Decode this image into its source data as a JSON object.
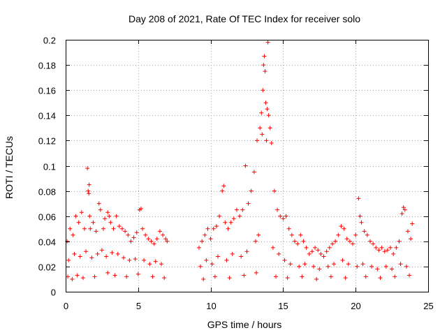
{
  "chart_data": {
    "type": "scatter",
    "title": "Day 208 of 2021, Rate Of TEC Index for receiver solo",
    "xlabel": "GPS time / hours",
    "ylabel": "ROTI / TECUs",
    "xlim": [
      0,
      25
    ],
    "ylim": [
      0,
      0.2
    ],
    "xticks": [
      0,
      5,
      10,
      15,
      20,
      25
    ],
    "xtick_labels": [
      "0",
      "5",
      "10",
      "15",
      "20",
      "25"
    ],
    "yticks": [
      0,
      0.02,
      0.04,
      0.06,
      0.08,
      0.1,
      0.12,
      0.14,
      0.16,
      0.18,
      0.2
    ],
    "ytick_labels": [
      "0",
      "0.02",
      "0.04",
      "0.06",
      "0.08",
      "0.1",
      "0.12",
      "0.14",
      "0.16",
      "0.18",
      "0.2"
    ],
    "grid": true,
    "marker": "+",
    "color": "#ff0000",
    "series": [
      {
        "name": "ROTI",
        "x": [
          0.1,
          0.3,
          0.5,
          0.7,
          0.9,
          1.1,
          1.3,
          1.5,
          1.55,
          1.6,
          1.62,
          1.65,
          1.7,
          1.9,
          2.1,
          2.3,
          2.4,
          2.6,
          2.7,
          2.9,
          3.0,
          3.1,
          3.3,
          3.5,
          3.7,
          3.9,
          4.1,
          4.3,
          4.5,
          4.7,
          4.9,
          5.1,
          5.2,
          5.3,
          5.5,
          5.7,
          5.9,
          6.1,
          6.3,
          6.5,
          6.7,
          6.9,
          7.0,
          0.2,
          0.6,
          1.0,
          1.4,
          1.8,
          2.2,
          2.5,
          2.8,
          3.2,
          3.6,
          4.0,
          4.4,
          4.8,
          5.4,
          5.8,
          6.2,
          6.6,
          0.15,
          0.45,
          0.8,
          1.2,
          2.0,
          2.9,
          3.4,
          4.2,
          5.0,
          6.0,
          6.8,
          9.2,
          9.4,
          9.6,
          9.8,
          10.0,
          10.2,
          10.4,
          10.6,
          10.8,
          10.9,
          11.0,
          11.2,
          11.4,
          11.6,
          11.8,
          12.0,
          12.2,
          12.4,
          12.6,
          12.8,
          13.0,
          13.2,
          13.4,
          13.5,
          13.55,
          13.6,
          13.65,
          13.7,
          13.75,
          13.8,
          13.85,
          13.9,
          13.95,
          14.0,
          14.1,
          14.2,
          14.4,
          14.6,
          14.8,
          15.0,
          15.2,
          15.4,
          15.6,
          15.8,
          16.0,
          16.2,
          16.4,
          16.6,
          16.8,
          17.0,
          17.2,
          17.4,
          17.6,
          17.8,
          18.0,
          18.2,
          18.4,
          18.6,
          18.8,
          19.0,
          19.2,
          19.4,
          19.6,
          19.8,
          20.0,
          20.2,
          20.3,
          20.4,
          20.6,
          20.8,
          21.0,
          21.2,
          21.4,
          21.6,
          21.8,
          22.0,
          22.2,
          22.4,
          22.6,
          22.8,
          23.0,
          23.2,
          23.3,
          23.4,
          23.6,
          23.8,
          23.9,
          9.3,
          9.7,
          10.1,
          10.5,
          11.1,
          11.5,
          12.1,
          12.5,
          13.1,
          13.3,
          14.3,
          14.7,
          15.1,
          15.5,
          16.1,
          16.5,
          17.1,
          17.5,
          18.1,
          18.5,
          19.1,
          19.5,
          20.1,
          20.5,
          21.1,
          21.5,
          22.1,
          22.5,
          23.1,
          23.5,
          9.5,
          10.3,
          11.3,
          12.3,
          13.15,
          14.5,
          15.3,
          16.3,
          17.3,
          18.3,
          19.3,
          20.7,
          21.7,
          22.7,
          23.7
        ],
        "y": [
          0.04,
          0.05,
          0.045,
          0.06,
          0.055,
          0.063,
          0.05,
          0.098,
          0.08,
          0.078,
          0.085,
          0.06,
          0.05,
          0.055,
          0.048,
          0.07,
          0.065,
          0.05,
          0.058,
          0.063,
          0.06,
          0.055,
          0.05,
          0.06,
          0.052,
          0.05,
          0.048,
          0.045,
          0.04,
          0.043,
          0.047,
          0.065,
          0.066,
          0.05,
          0.045,
          0.042,
          0.04,
          0.038,
          0.042,
          0.048,
          0.045,
          0.042,
          0.04,
          0.025,
          0.03,
          0.028,
          0.032,
          0.027,
          0.03,
          0.033,
          0.028,
          0.031,
          0.03,
          0.027,
          0.025,
          0.026,
          0.025,
          0.022,
          0.024,
          0.022,
          0.012,
          0.01,
          0.013,
          0.011,
          0.012,
          0.015,
          0.013,
          0.012,
          0.014,
          0.012,
          0.011,
          0.035,
          0.04,
          0.045,
          0.05,
          0.042,
          0.05,
          0.052,
          0.06,
          0.08,
          0.084,
          0.055,
          0.05,
          0.055,
          0.058,
          0.065,
          0.06,
          0.065,
          0.1,
          0.07,
          0.08,
          0.095,
          0.12,
          0.13,
          0.142,
          0.125,
          0.16,
          0.18,
          0.187,
          0.175,
          0.15,
          0.12,
          0.145,
          0.198,
          0.14,
          0.13,
          0.118,
          0.08,
          0.065,
          0.06,
          0.058,
          0.06,
          0.05,
          0.045,
          0.04,
          0.038,
          0.045,
          0.04,
          0.035,
          0.03,
          0.032,
          0.035,
          0.033,
          0.03,
          0.028,
          0.032,
          0.035,
          0.038,
          0.04,
          0.045,
          0.052,
          0.05,
          0.042,
          0.04,
          0.038,
          0.045,
          0.074,
          0.06,
          0.055,
          0.048,
          0.045,
          0.04,
          0.038,
          0.035,
          0.033,
          0.035,
          0.032,
          0.033,
          0.035,
          0.03,
          0.035,
          0.04,
          0.062,
          0.067,
          0.065,
          0.048,
          0.042,
          0.054,
          0.02,
          0.025,
          0.022,
          0.028,
          0.025,
          0.03,
          0.028,
          0.032,
          0.04,
          0.045,
          0.035,
          0.03,
          0.025,
          0.022,
          0.02,
          0.022,
          0.02,
          0.018,
          0.02,
          0.022,
          0.025,
          0.022,
          0.02,
          0.022,
          0.02,
          0.018,
          0.02,
          0.018,
          0.022,
          0.02,
          0.01,
          0.012,
          0.011,
          0.013,
          0.015,
          0.012,
          0.011,
          0.012,
          0.01,
          0.012,
          0.011,
          0.012,
          0.011,
          0.012,
          0.013
        ]
      }
    ]
  }
}
